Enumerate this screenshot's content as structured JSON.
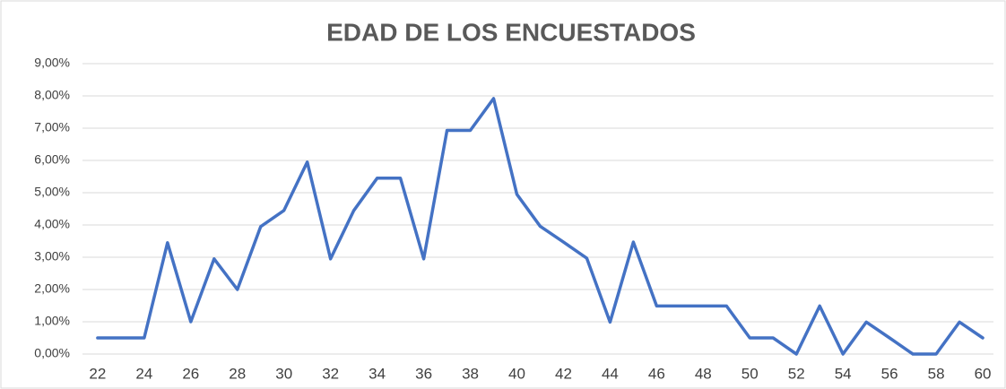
{
  "chart_data": {
    "type": "line",
    "title": "EDAD DE LOS ENCUESTADOS",
    "x": [
      22,
      23,
      24,
      25,
      26,
      27,
      28,
      29,
      30,
      31,
      32,
      33,
      34,
      35,
      36,
      37,
      38,
      39,
      40,
      41,
      42,
      43,
      44,
      45,
      46,
      47,
      48,
      49,
      50,
      51,
      52,
      53,
      54,
      55,
      56,
      57,
      58,
      59,
      60
    ],
    "series": [
      {
        "color": "#4472c4",
        "values": [
          0.5,
          0.5,
          0.5,
          3.45,
          1.0,
          2.95,
          2.0,
          3.95,
          4.45,
          5.95,
          2.95,
          4.45,
          5.45,
          5.45,
          2.95,
          6.93,
          6.93,
          7.92,
          4.95,
          3.96,
          3.47,
          2.97,
          0.99,
          3.47,
          1.49,
          1.49,
          1.49,
          1.49,
          0.5,
          0.5,
          0,
          1.49,
          0,
          0.99,
          0.5,
          0,
          0,
          0.99,
          0.5
        ]
      }
    ],
    "xlim": [
      21.35,
      60.46
    ],
    "xticks": [
      22,
      24,
      26,
      28,
      30,
      32,
      34,
      36,
      38,
      40,
      42,
      44,
      46,
      48,
      50,
      52,
      54,
      56,
      58,
      60
    ],
    "ylim": [
      0,
      9
    ],
    "yticks": [
      {
        "value": 0,
        "label": "0,00%"
      },
      {
        "value": 1,
        "label": "1,00%"
      },
      {
        "value": 2,
        "label": "2,00%"
      },
      {
        "value": 3,
        "label": "3,00%"
      },
      {
        "value": 4,
        "label": "4,00%"
      },
      {
        "value": 5,
        "label": "5,00%"
      },
      {
        "value": 6,
        "label": "6,00%"
      },
      {
        "value": 7,
        "label": "7,00%"
      },
      {
        "value": 8,
        "label": "8,00%"
      },
      {
        "value": 9,
        "label": "9,00%"
      }
    ],
    "grid": true
  }
}
